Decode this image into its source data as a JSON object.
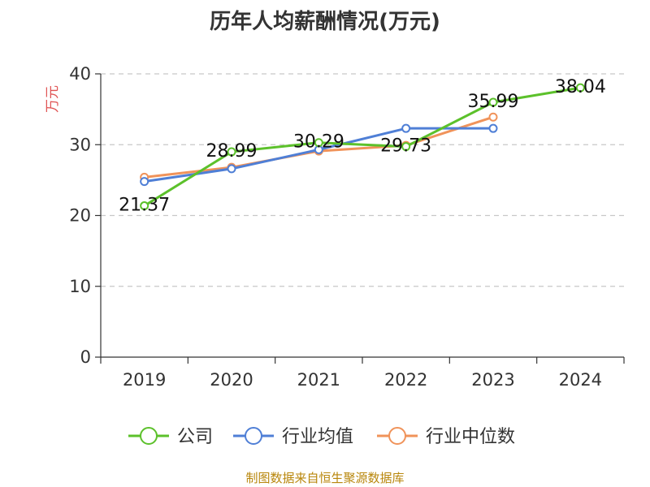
{
  "title": "历年人均薪酬情况(万元)",
  "source": "制图数据来自恒生聚源数据库",
  "chart_data": {
    "type": "line",
    "title": "历年人均薪酬情况(万元)",
    "ylabel": "万元",
    "xlabel": "",
    "categories": [
      "2019",
      "2020",
      "2021",
      "2022",
      "2023",
      "2024"
    ],
    "ylim": [
      0,
      40
    ],
    "yticks": [
      0,
      10,
      20,
      30,
      40
    ],
    "grid": true,
    "legend_position": "bottom",
    "series": [
      {
        "name": "公司",
        "color": "#5cc12b",
        "values": [
          21.37,
          28.99,
          30.29,
          29.73,
          35.99,
          38.04
        ],
        "labels": [
          "21.37",
          "28.99",
          "30.29",
          "29.73",
          "35.99",
          "38.04"
        ]
      },
      {
        "name": "行业均值",
        "color": "#4f7fd6",
        "values": [
          24.8,
          26.6,
          29.3,
          32.3,
          32.3,
          null
        ]
      },
      {
        "name": "行业中位数",
        "color": "#f0935a",
        "values": [
          25.4,
          26.8,
          29.1,
          29.9,
          33.9,
          null
        ]
      }
    ]
  }
}
